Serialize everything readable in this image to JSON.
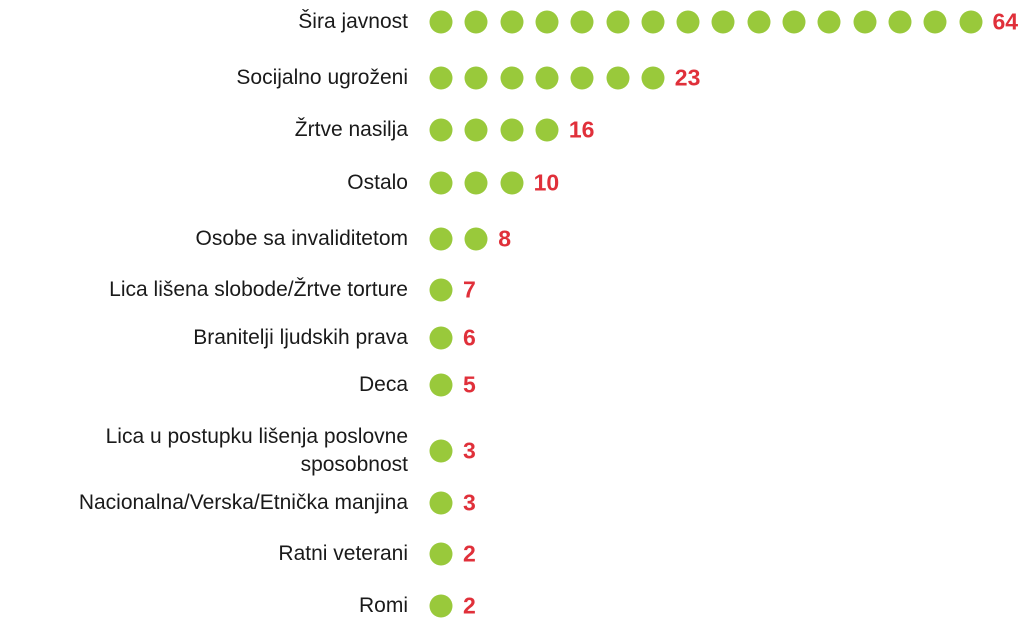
{
  "chart_data": {
    "type": "pictograph",
    "categories": [
      "Šira javnost",
      "Socijalno ugroženi",
      "Žrtve nasilja",
      "Ostalo",
      "Osobe sa invaliditetom",
      "Lica lišena slobode/Žrtve torture",
      "Branitelji ljudskih prava",
      "Deca",
      "Lica u postupku lišenja poslovne\nsposobnost",
      "Nacionalna/Verska/Etnička manjina",
      "Ratni veterani",
      "Romi"
    ],
    "values": [
      64,
      23,
      16,
      10,
      8,
      7,
      6,
      5,
      3,
      3,
      2,
      2
    ],
    "dots": [
      16,
      7,
      4,
      3,
      2,
      1,
      1,
      1,
      1,
      1,
      1,
      1
    ],
    "color": "#99c93b",
    "label_color": "#e0303a"
  }
}
